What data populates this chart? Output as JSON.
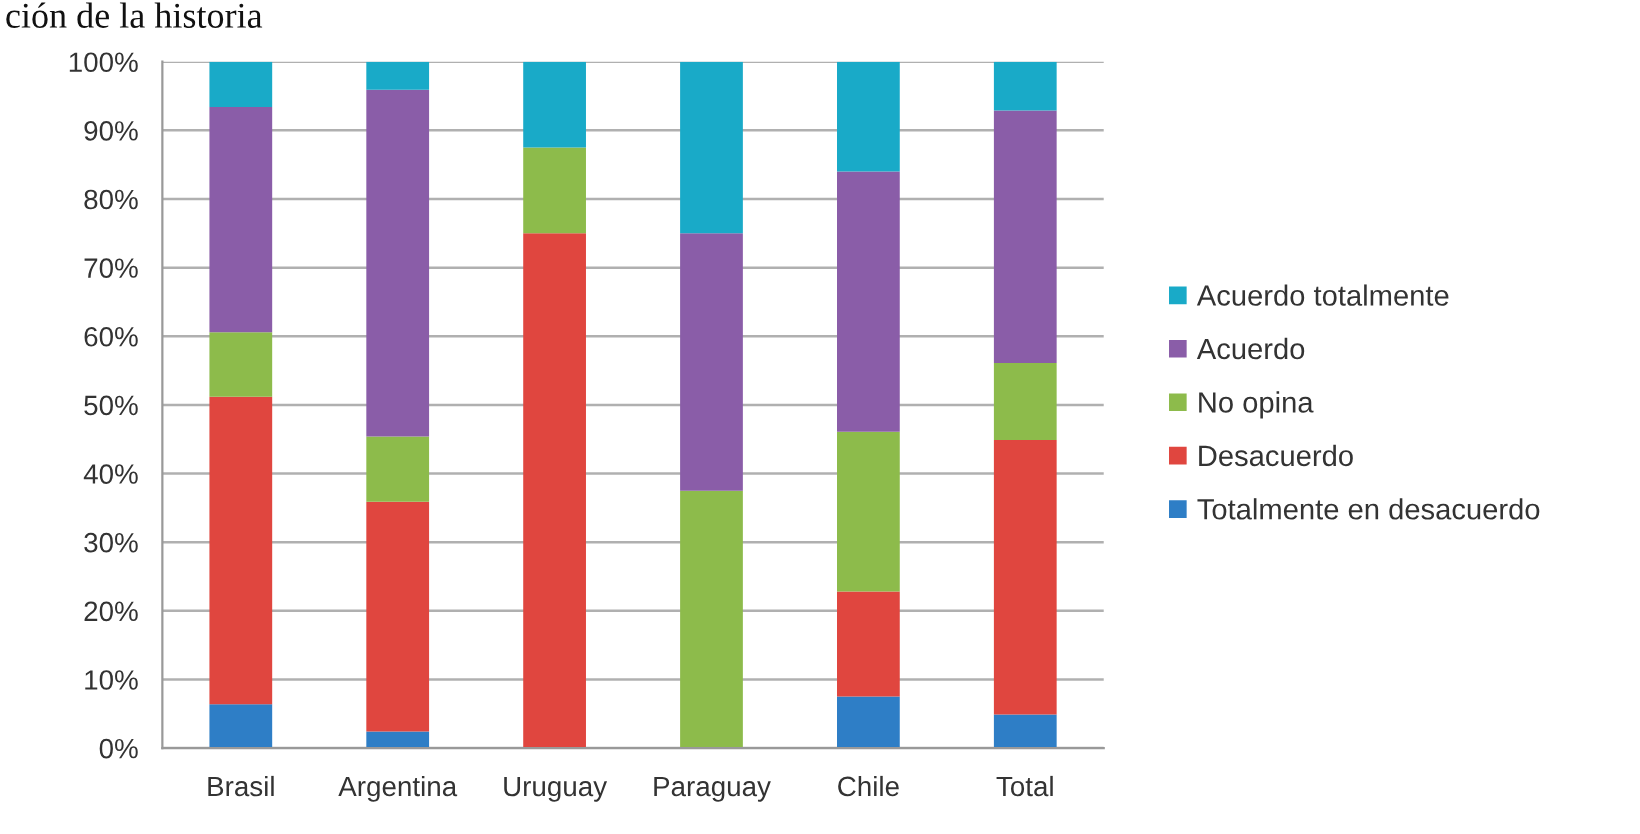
{
  "chart_data": {
    "type": "bar",
    "title": "ción de la historia",
    "categories": [
      "Brasil",
      "Argentina",
      "Uruguay",
      "Paraguay",
      "Chile",
      "Total"
    ],
    "stacked": true,
    "series": [
      {
        "name": "Totalmente en desacuerdo",
        "color": "#2e7ec6",
        "values": [
          6.4,
          2.4,
          0,
          0,
          7.5,
          4.9
        ]
      },
      {
        "name": "Desacuerdo",
        "color": "#e0463f",
        "values": [
          44.8,
          33.5,
          75,
          0,
          15.3,
          40
        ]
      },
      {
        "name": "No opina",
        "color": "#8dbb4b",
        "values": [
          9.4,
          9.5,
          12.5,
          37.5,
          23.3,
          11.2
        ]
      },
      {
        "name": "Acuerdo",
        "color": "#8a5da8",
        "values": [
          32.8,
          50.5,
          0,
          37.5,
          37.9,
          36.8
        ]
      },
      {
        "name": "Acuerdo totalmente",
        "color": "#19aac8",
        "values": [
          6.6,
          4.1,
          12.5,
          25,
          16,
          7.1
        ]
      }
    ],
    "ylim": [
      0,
      100
    ],
    "yticks": [
      {
        "value": 0,
        "label": "0%"
      },
      {
        "value": 10,
        "label": "10%"
      },
      {
        "value": 20,
        "label": "20%"
      },
      {
        "value": 30,
        "label": "30%"
      },
      {
        "value": 40,
        "label": "40%"
      },
      {
        "value": 50,
        "label": "50%"
      },
      {
        "value": 60,
        "label": "60%"
      },
      {
        "value": 70,
        "label": "70%"
      },
      {
        "value": 80,
        "label": "80%"
      },
      {
        "value": 90,
        "label": "90%"
      },
      {
        "value": 100,
        "label": "100%"
      }
    ],
    "grid": "y",
    "legend": "right"
  }
}
